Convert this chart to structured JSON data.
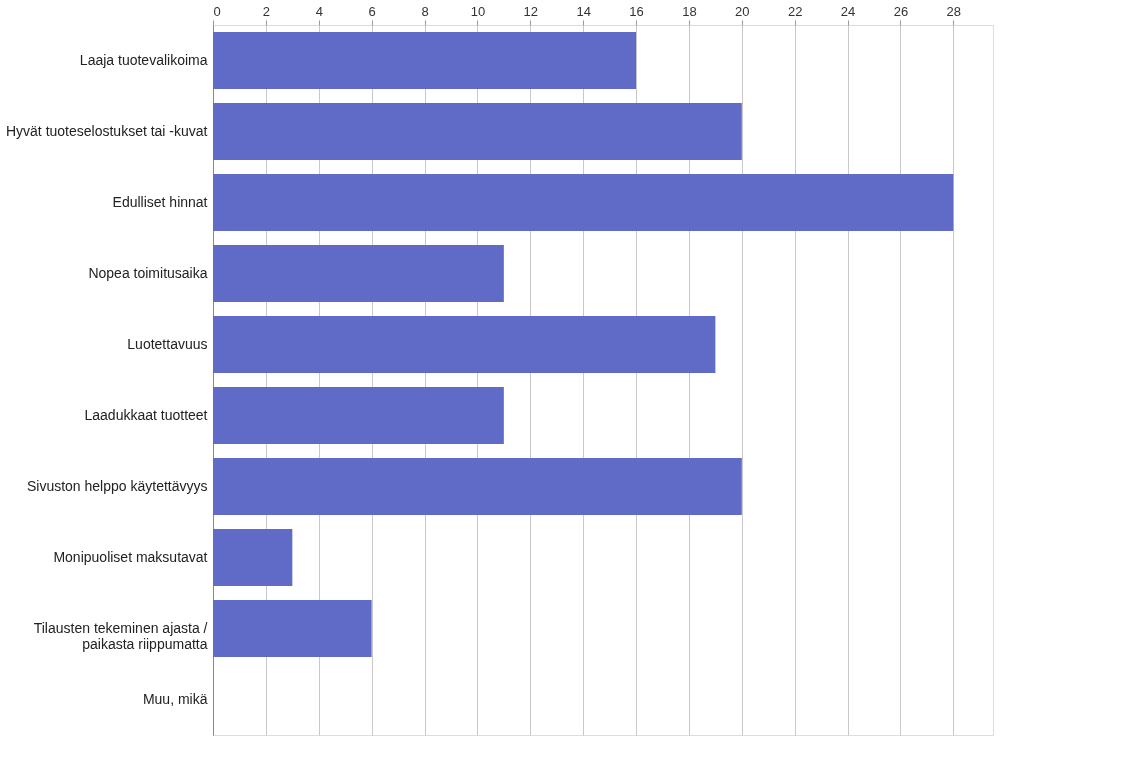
{
  "chart_data": {
    "type": "bar",
    "orientation": "horizontal",
    "categories": [
      "Laaja tuotevalikoima",
      "Hyvät tuoteselostukset tai -kuvat",
      "Edulliset hinnat",
      "Nopea toimitusaika",
      "Luotettavuus",
      "Laadukkaat   tuotteet",
      "Sivuston helppo käytettävyys",
      "Monipuoliset maksutavat",
      "Tilausten tekeminen ajasta /\npaikasta riippumatta",
      "Muu, mikä"
    ],
    "values": [
      16,
      20,
      28,
      11,
      19,
      11,
      20,
      3,
      6,
      0
    ],
    "color": "#5f6bc6",
    "xlim": [
      0,
      29.5
    ],
    "xticks": [
      0,
      2,
      4,
      6,
      8,
      10,
      12,
      14,
      16,
      18,
      20,
      22,
      24,
      26,
      28
    ],
    "grid": "x"
  }
}
